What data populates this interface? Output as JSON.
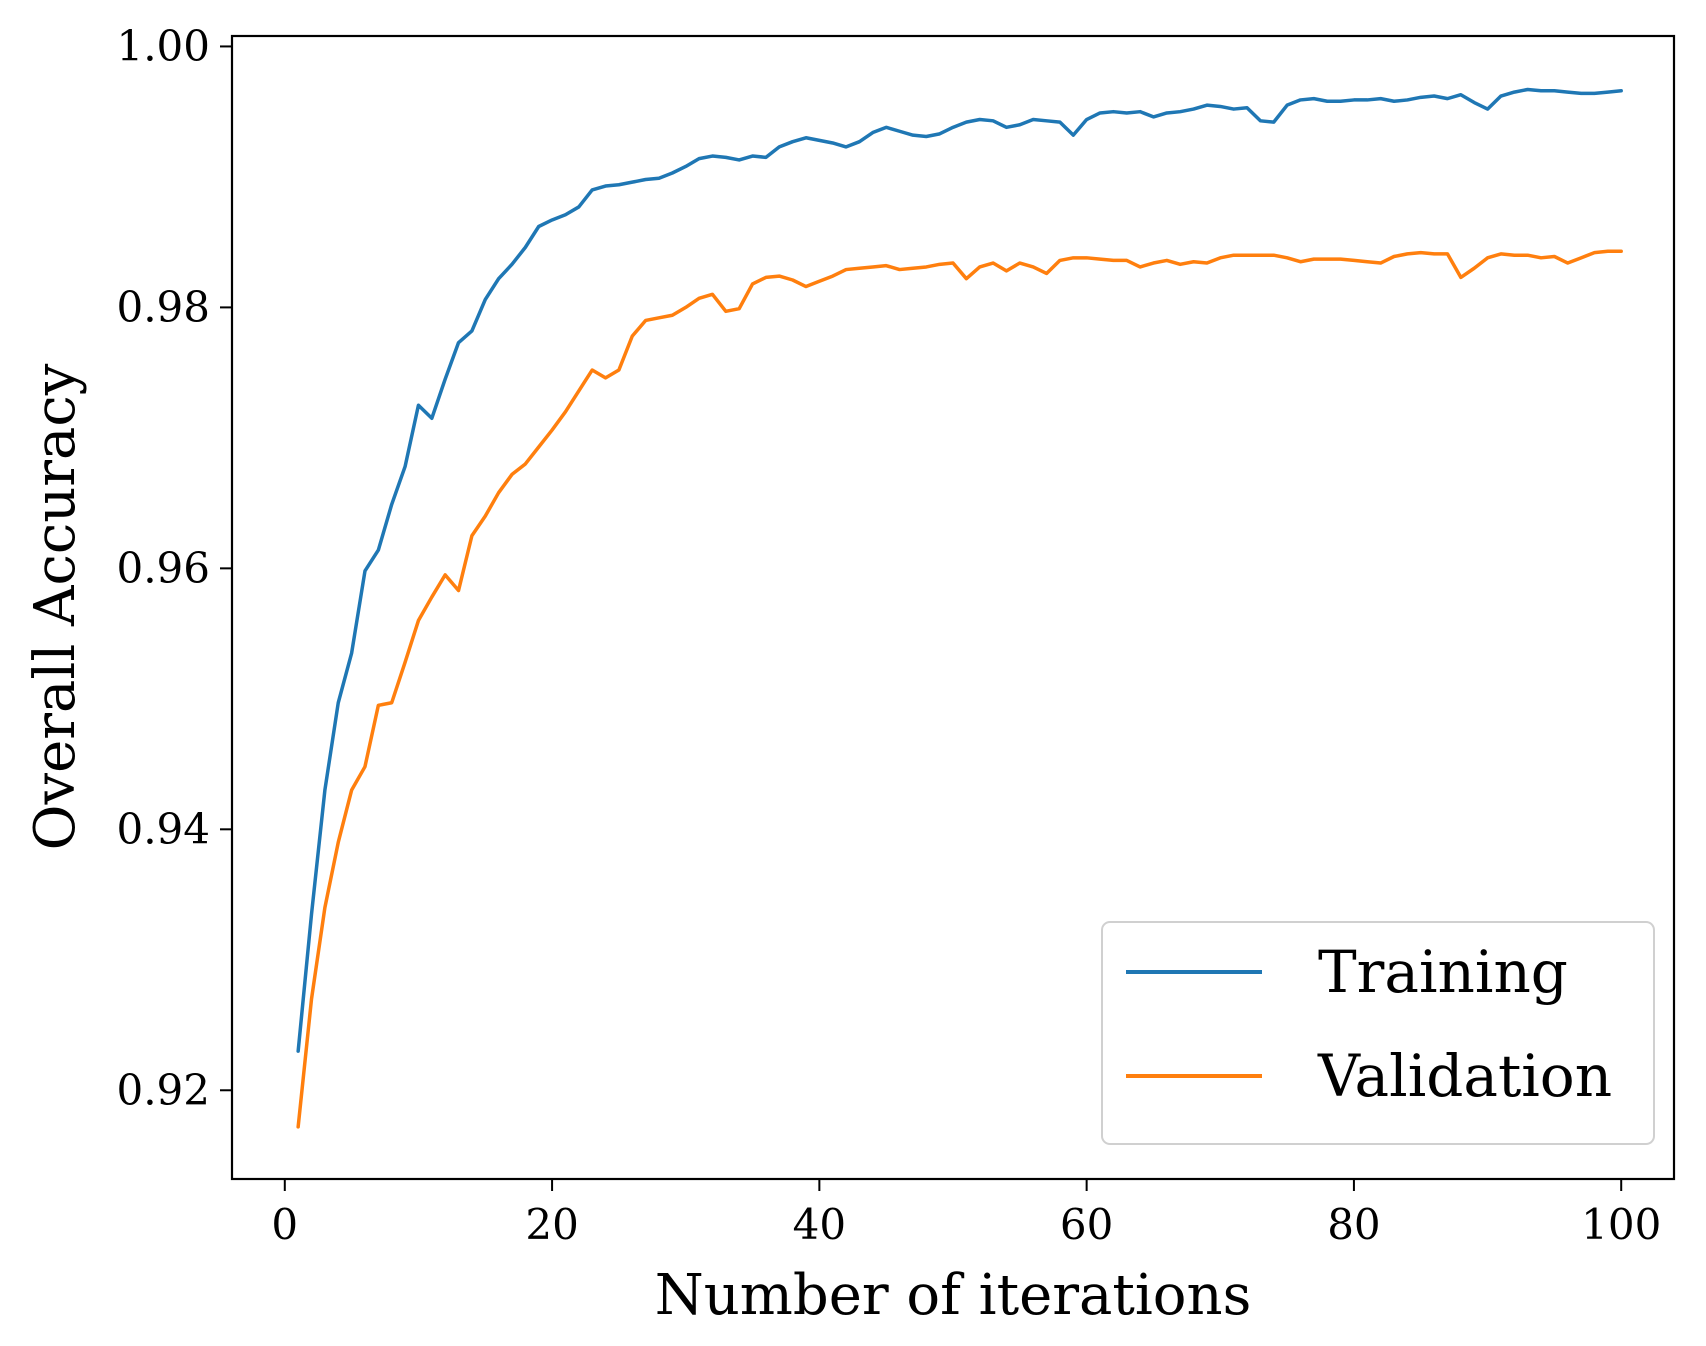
{
  "chart_data": {
    "type": "line",
    "title": "",
    "xlabel": "Number of iterations",
    "ylabel": "Overall Accuracy",
    "xlim": [
      -3.95,
      103.95
    ],
    "ylim": [
      0.9132,
      1.0008
    ],
    "xticks": [
      0,
      20,
      40,
      60,
      80,
      100
    ],
    "xtick_labels": [
      "0",
      "20",
      "40",
      "60",
      "80",
      "100"
    ],
    "yticks": [
      0.92,
      0.94,
      0.96,
      0.98,
      1.0
    ],
    "ytick_labels": [
      "0.92",
      "0.94",
      "0.96",
      "0.98",
      "1.00"
    ],
    "grid": false,
    "legend_position": "bottom-right",
    "x": [
      1,
      2,
      3,
      4,
      5,
      6,
      7,
      8,
      9,
      10,
      11,
      12,
      13,
      14,
      15,
      16,
      17,
      18,
      19,
      20,
      21,
      22,
      23,
      24,
      25,
      26,
      27,
      28,
      29,
      30,
      31,
      32,
      33,
      34,
      35,
      36,
      37,
      38,
      39,
      40,
      41,
      42,
      43,
      44,
      45,
      46,
      47,
      48,
      49,
      50,
      51,
      52,
      53,
      54,
      55,
      56,
      57,
      58,
      59,
      60,
      61,
      62,
      63,
      64,
      65,
      66,
      67,
      68,
      69,
      70,
      71,
      72,
      73,
      74,
      75,
      76,
      77,
      78,
      79,
      80,
      81,
      82,
      83,
      84,
      85,
      86,
      87,
      88,
      89,
      90,
      91,
      92,
      93,
      94,
      95,
      96,
      97,
      98,
      99,
      100
    ],
    "series": [
      {
        "name": "Training",
        "color": "#1f77b4",
        "values": [
          0.923,
          0.9335,
          0.943,
          0.9497,
          0.9535,
          0.9598,
          0.9614,
          0.9649,
          0.9678,
          0.9725,
          0.9715,
          0.9745,
          0.9773,
          0.9782,
          0.9806,
          0.9822,
          0.9833,
          0.9846,
          0.9862,
          0.9867,
          0.9871,
          0.9877,
          0.989,
          0.9893,
          0.9894,
          0.9896,
          0.9898,
          0.9899,
          0.9903,
          0.9908,
          0.9914,
          0.9916,
          0.9915,
          0.9913,
          0.9916,
          0.9915,
          0.9923,
          0.9927,
          0.993,
          0.9928,
          0.9926,
          0.9923,
          0.9927,
          0.9934,
          0.9938,
          0.9935,
          0.9932,
          0.9931,
          0.9933,
          0.9938,
          0.9942,
          0.9944,
          0.9943,
          0.9938,
          0.994,
          0.9944,
          0.9943,
          0.9942,
          0.9932,
          0.9944,
          0.9949,
          0.995,
          0.9949,
          0.995,
          0.9946,
          0.9949,
          0.995,
          0.9952,
          0.9955,
          0.9954,
          0.9952,
          0.9953,
          0.9943,
          0.9942,
          0.9955,
          0.9959,
          0.996,
          0.9958,
          0.9958,
          0.9959,
          0.9959,
          0.996,
          0.9958,
          0.9959,
          0.9961,
          0.9962,
          0.996,
          0.9963,
          0.9957,
          0.9952,
          0.9962,
          0.9965,
          0.9967,
          0.9966,
          0.9966,
          0.9965,
          0.9964,
          0.9964,
          0.9965,
          0.9966
        ]
      },
      {
        "name": "Validation",
        "color": "#ff7f0e",
        "values": [
          0.9172,
          0.927,
          0.934,
          0.939,
          0.943,
          0.9448,
          0.9495,
          0.9497,
          0.9528,
          0.956,
          0.9578,
          0.9595,
          0.9583,
          0.9625,
          0.964,
          0.9658,
          0.9672,
          0.968,
          0.9693,
          0.9706,
          0.972,
          0.9736,
          0.9752,
          0.9746,
          0.9752,
          0.9778,
          0.979,
          0.9792,
          0.9794,
          0.98,
          0.9807,
          0.981,
          0.9797,
          0.9799,
          0.9818,
          0.9823,
          0.9824,
          0.9821,
          0.9816,
          0.982,
          0.9824,
          0.9829,
          0.983,
          0.9831,
          0.9832,
          0.9829,
          0.983,
          0.9831,
          0.9833,
          0.9834,
          0.9822,
          0.9831,
          0.9834,
          0.9828,
          0.9834,
          0.9831,
          0.9826,
          0.9836,
          0.9838,
          0.9838,
          0.9837,
          0.9836,
          0.9836,
          0.9831,
          0.9834,
          0.9836,
          0.9833,
          0.9835,
          0.9834,
          0.9838,
          0.984,
          0.984,
          0.984,
          0.984,
          0.9838,
          0.9835,
          0.9837,
          0.9837,
          0.9837,
          0.9836,
          0.9835,
          0.9834,
          0.9839,
          0.9841,
          0.9842,
          0.9841,
          0.9841,
          0.9823,
          0.983,
          0.9838,
          0.9841,
          0.984,
          0.984,
          0.9838,
          0.9839,
          0.9834,
          0.9838,
          0.9842,
          0.9843,
          0.9843
        ]
      }
    ]
  }
}
